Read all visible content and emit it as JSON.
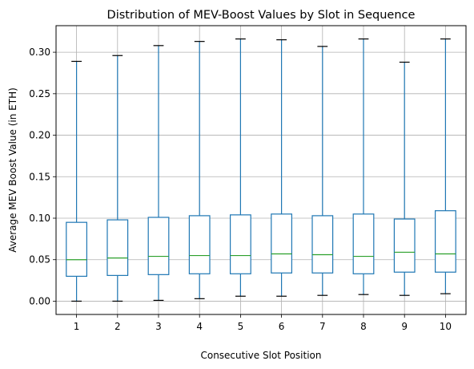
{
  "chart_data": {
    "type": "boxplot",
    "title": "Distribution of MEV-Boost Values by Slot in Sequence",
    "xlabel": "Consecutive Slot Position",
    "ylabel": "Average MEV Boost Value (in ETH)",
    "categories": [
      "1",
      "2",
      "3",
      "4",
      "5",
      "6",
      "7",
      "8",
      "9",
      "10"
    ],
    "ylim": [
      -0.016,
      0.332
    ],
    "yticks": [
      {
        "value": 0.0,
        "label": "0.00"
      },
      {
        "value": 0.05,
        "label": "0.05"
      },
      {
        "value": 0.1,
        "label": "0.10"
      },
      {
        "value": 0.15,
        "label": "0.15"
      },
      {
        "value": 0.2,
        "label": "0.20"
      },
      {
        "value": 0.25,
        "label": "0.25"
      },
      {
        "value": 0.3,
        "label": "0.30"
      }
    ],
    "grid": true,
    "colors": {
      "box": "#1f77b4",
      "median": "#2ca02c",
      "whisker_cap": "#000000",
      "grid": "#b0b0b0"
    },
    "boxes": [
      {
        "label": "1",
        "whislo": 0.0,
        "q1": 0.03,
        "med": 0.05,
        "q3": 0.095,
        "whishi": 0.289
      },
      {
        "label": "2",
        "whislo": 0.0,
        "q1": 0.031,
        "med": 0.052,
        "q3": 0.098,
        "whishi": 0.296
      },
      {
        "label": "3",
        "whislo": 0.001,
        "q1": 0.032,
        "med": 0.054,
        "q3": 0.101,
        "whishi": 0.308
      },
      {
        "label": "4",
        "whislo": 0.003,
        "q1": 0.033,
        "med": 0.055,
        "q3": 0.103,
        "whishi": 0.313
      },
      {
        "label": "5",
        "whislo": 0.006,
        "q1": 0.033,
        "med": 0.055,
        "q3": 0.104,
        "whishi": 0.316
      },
      {
        "label": "6",
        "whislo": 0.006,
        "q1": 0.034,
        "med": 0.057,
        "q3": 0.105,
        "whishi": 0.315
      },
      {
        "label": "7",
        "whislo": 0.007,
        "q1": 0.034,
        "med": 0.056,
        "q3": 0.103,
        "whishi": 0.307
      },
      {
        "label": "8",
        "whislo": 0.008,
        "q1": 0.033,
        "med": 0.054,
        "q3": 0.105,
        "whishi": 0.316
      },
      {
        "label": "9",
        "whislo": 0.007,
        "q1": 0.035,
        "med": 0.059,
        "q3": 0.099,
        "whishi": 0.288
      },
      {
        "label": "10",
        "whislo": 0.009,
        "q1": 0.035,
        "med": 0.057,
        "q3": 0.109,
        "whishi": 0.316
      }
    ]
  }
}
